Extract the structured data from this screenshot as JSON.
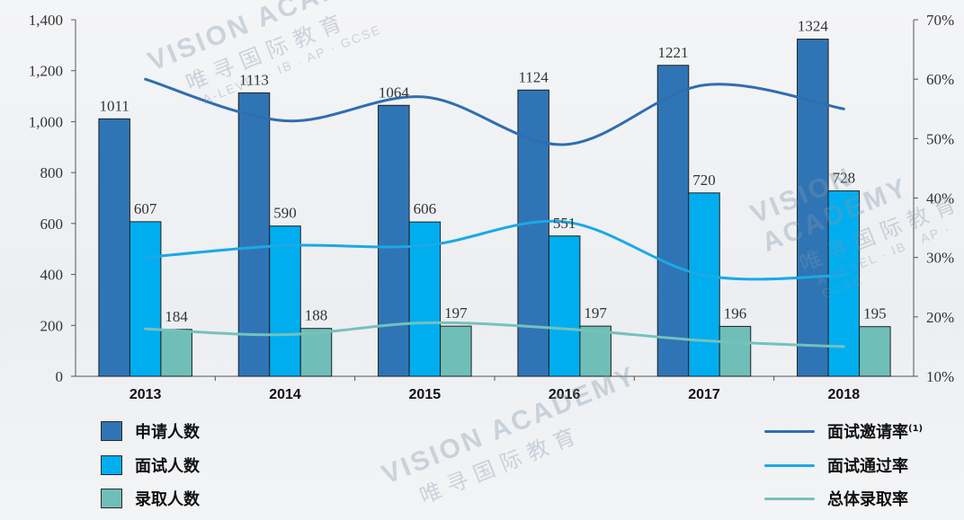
{
  "chart_data": {
    "type": "bar",
    "categories": [
      "2013",
      "2014",
      "2015",
      "2016",
      "2017",
      "2018"
    ],
    "series": [
      {
        "name": "申请人数",
        "kind": "bar",
        "axis": "left",
        "color": "#2f75b5",
        "values": [
          1011,
          1113,
          1064,
          1124,
          1221,
          1324
        ]
      },
      {
        "name": "面试人数",
        "kind": "bar",
        "axis": "left",
        "color": "#00aef0",
        "values": [
          607,
          590,
          606,
          551,
          720,
          728
        ]
      },
      {
        "name": "录取人数",
        "kind": "bar",
        "axis": "left",
        "color": "#6fbfb8",
        "values": [
          184,
          188,
          197,
          197,
          196,
          195
        ]
      },
      {
        "name": "面试邀请率",
        "kind": "line",
        "axis": "right",
        "color": "#2f6eb0",
        "values": [
          0.6,
          0.53,
          0.57,
          0.49,
          0.59,
          0.55
        ]
      },
      {
        "name": "面试通过率",
        "kind": "line",
        "axis": "right",
        "color": "#1ba9e6",
        "values": [
          0.3,
          0.32,
          0.32,
          0.36,
          0.27,
          0.27
        ]
      },
      {
        "name": "总体录取率",
        "kind": "line",
        "axis": "right",
        "color": "#75c1bc",
        "values": [
          0.18,
          0.17,
          0.19,
          0.18,
          0.16,
          0.15
        ]
      }
    ],
    "ylim_left": [
      0,
      1400
    ],
    "yticks_left": [
      "0",
      "200",
      "400",
      "600",
      "800",
      "1,000",
      "1,200",
      "1,400"
    ],
    "ylim_right": [
      0.1,
      0.7
    ],
    "yticks_right": [
      "10%",
      "20%",
      "30%",
      "40%",
      "50%",
      "60%",
      "70%"
    ],
    "title": "",
    "xlabel": "",
    "ylabel": "",
    "grid": false
  },
  "legend": {
    "bars": [
      "申请人数",
      "面试人数",
      "录取人数"
    ],
    "lines": [
      "面试邀请率",
      "面试通过率",
      "总体录取率"
    ],
    "footnote_marker": "(1)"
  },
  "watermark": {
    "brand": "VISION ACADEMY",
    "cn": "唯寻国际教育",
    "sub": "A-LEVEL · IB · AP · GCSE"
  }
}
